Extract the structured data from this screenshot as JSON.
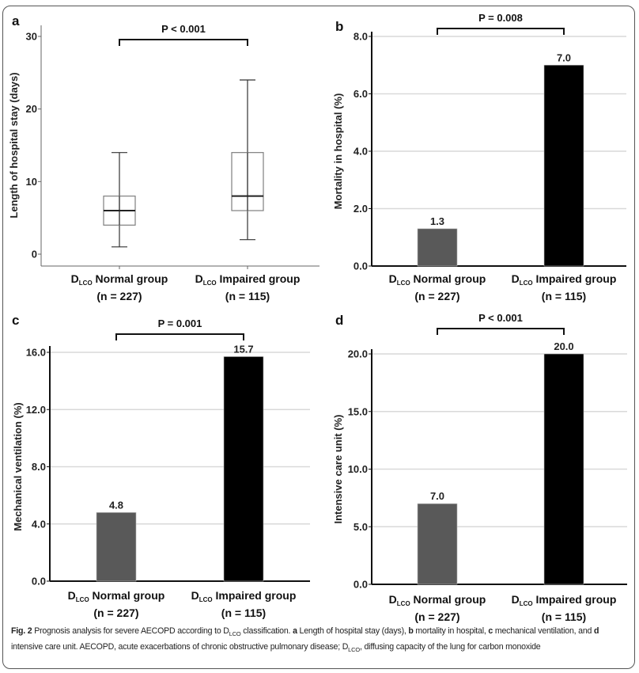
{
  "figure": {
    "caption": {
      "label": "Fig. 2",
      "parts": [
        {
          "t": " Prognosis analysis for severe AECOPD according to D",
          "b": false
        },
        {
          "t": "LCO",
          "sub": true
        },
        {
          "t": " classification. ",
          "b": false
        },
        {
          "t": "a",
          "b": true
        },
        {
          "t": " Length of hospital stay (days), ",
          "b": false
        },
        {
          "t": "b",
          "b": true
        },
        {
          "t": " mortality in hospital, ",
          "b": false
        },
        {
          "t": "c",
          "b": true
        },
        {
          "t": " mechanical ventilation, and ",
          "b": false
        },
        {
          "t": "d",
          "b": true
        },
        {
          "t": " intensive care unit. AECOPD, acute exacerbations of chronic obstructive pulmonary disease; D",
          "b": false
        },
        {
          "t": "LCO",
          "sub": true
        },
        {
          "t": ", diffusing capacity of the lung for carbon monoxide",
          "b": false
        }
      ]
    },
    "colors": {
      "normal_bar": "#595959",
      "impaired_bar": "#000000",
      "gridline": "#d9d9d9",
      "box_stroke": "#7f7f7f"
    }
  },
  "chart_data": [
    {
      "panel": "a",
      "type": "box",
      "title": "",
      "xlabel": "",
      "ylabel": "Length of hospital stay (days)",
      "ylim": [
        0,
        30
      ],
      "yticks": [
        "0",
        "10",
        "20",
        "30"
      ],
      "ytick_values": [
        0,
        10,
        20,
        30
      ],
      "grid": false,
      "categories": [
        {
          "prefix": "D",
          "sub": "LCO",
          "name": "Normal group",
          "n": "(n = 227)"
        },
        {
          "prefix": "D",
          "sub": "LCO",
          "name": "Impaired group",
          "n": "(n = 115)"
        }
      ],
      "boxes": [
        {
          "min": 1,
          "q1": 4,
          "median": 6,
          "q3": 8,
          "max": 14
        },
        {
          "min": 2,
          "q1": 6,
          "median": 8,
          "q3": 14,
          "max": 24
        }
      ],
      "significance": "P < 0.001"
    },
    {
      "panel": "b",
      "type": "bar",
      "title": "",
      "xlabel": "",
      "ylabel": "Mortality in hospital (%)",
      "ylim": [
        0,
        8
      ],
      "yticks": [
        "0.0",
        "2.0",
        "4.0",
        "6.0",
        "8.0"
      ],
      "ytick_values": [
        0,
        2,
        4,
        6,
        8
      ],
      "grid": true,
      "categories": [
        {
          "prefix": "D",
          "sub": "LCO",
          "name": "Normal group",
          "n": "(n = 227)"
        },
        {
          "prefix": "D",
          "sub": "LCO",
          "name": "Impaired group",
          "n": "(n = 115)"
        }
      ],
      "values": [
        1.3,
        7.0
      ],
      "value_labels": [
        "1.3",
        "7.0"
      ],
      "significance": "P = 0.008"
    },
    {
      "panel": "c",
      "type": "bar",
      "title": "",
      "xlabel": "",
      "ylabel": "Mechanical ventilation (%)",
      "ylim": [
        0,
        16
      ],
      "yticks": [
        "0.0",
        "4.0",
        "8.0",
        "12.0",
        "16.0"
      ],
      "ytick_values": [
        0,
        4,
        8,
        12,
        16
      ],
      "grid": true,
      "categories": [
        {
          "prefix": "D",
          "sub": "LCO",
          "name": "Normal group",
          "n": "(n = 227)"
        },
        {
          "prefix": "D",
          "sub": "LCO",
          "name": "Impaired group",
          "n": "(n = 115)"
        }
      ],
      "values": [
        4.8,
        15.7
      ],
      "value_labels": [
        "4.8",
        "15.7"
      ],
      "significance": "P = 0.001"
    },
    {
      "panel": "d",
      "type": "bar",
      "title": "",
      "xlabel": "",
      "ylabel": "Intensive care unit (%)",
      "ylim": [
        0,
        20
      ],
      "yticks": [
        "0.0",
        "5.0",
        "10.0",
        "15.0",
        "20.0"
      ],
      "ytick_values": [
        0,
        5,
        10,
        15,
        20
      ],
      "grid": true,
      "categories": [
        {
          "prefix": "D",
          "sub": "LCO",
          "name": "Normal group",
          "n": "(n = 227)"
        },
        {
          "prefix": "D",
          "sub": "LCO",
          "name": "Impaired group",
          "n": "(n = 115)"
        }
      ],
      "values": [
        7.0,
        20.0
      ],
      "value_labels": [
        "7.0",
        "20.0"
      ],
      "significance": "P < 0.001"
    }
  ]
}
